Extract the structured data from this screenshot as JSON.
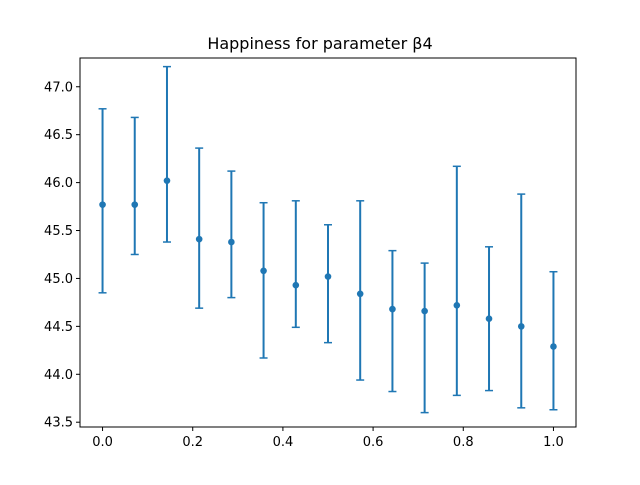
{
  "chart_data": {
    "type": "scatter",
    "title": "Happiness for parameter β4",
    "xlabel": "",
    "ylabel": "",
    "xlim": [
      -0.05,
      1.05
    ],
    "ylim": [
      43.45,
      47.3
    ],
    "x_ticks": [
      0.0,
      0.2,
      0.4,
      0.6,
      0.8,
      1.0
    ],
    "x_tick_labels": [
      "0.0",
      "0.2",
      "0.4",
      "0.6",
      "0.8",
      "1.0"
    ],
    "y_ticks": [
      43.5,
      44.0,
      44.5,
      45.0,
      45.5,
      46.0,
      46.5,
      47.0
    ],
    "y_tick_labels": [
      "43.5",
      "44.0",
      "44.5",
      "45.0",
      "45.5",
      "46.0",
      "46.5",
      "47.0"
    ],
    "grid": false,
    "series": [
      {
        "color": "#1f77b4",
        "x": [
          0.0,
          0.0714,
          0.1429,
          0.2143,
          0.2857,
          0.3571,
          0.4286,
          0.5,
          0.5714,
          0.6429,
          0.7143,
          0.7857,
          0.8571,
          0.9286,
          1.0
        ],
        "y": [
          45.77,
          45.77,
          46.02,
          45.41,
          45.38,
          45.08,
          44.93,
          45.02,
          44.84,
          44.68,
          44.66,
          44.72,
          44.58,
          44.5,
          44.29
        ],
        "err_low": [
          44.85,
          45.25,
          45.38,
          44.69,
          44.8,
          44.17,
          44.49,
          44.33,
          43.94,
          43.82,
          43.6,
          43.78,
          43.83,
          43.65,
          43.63
        ],
        "err_high": [
          46.77,
          46.68,
          47.21,
          46.36,
          46.12,
          45.79,
          45.81,
          45.56,
          45.81,
          45.29,
          45.16,
          46.17,
          45.33,
          45.88,
          45.07
        ]
      }
    ]
  }
}
